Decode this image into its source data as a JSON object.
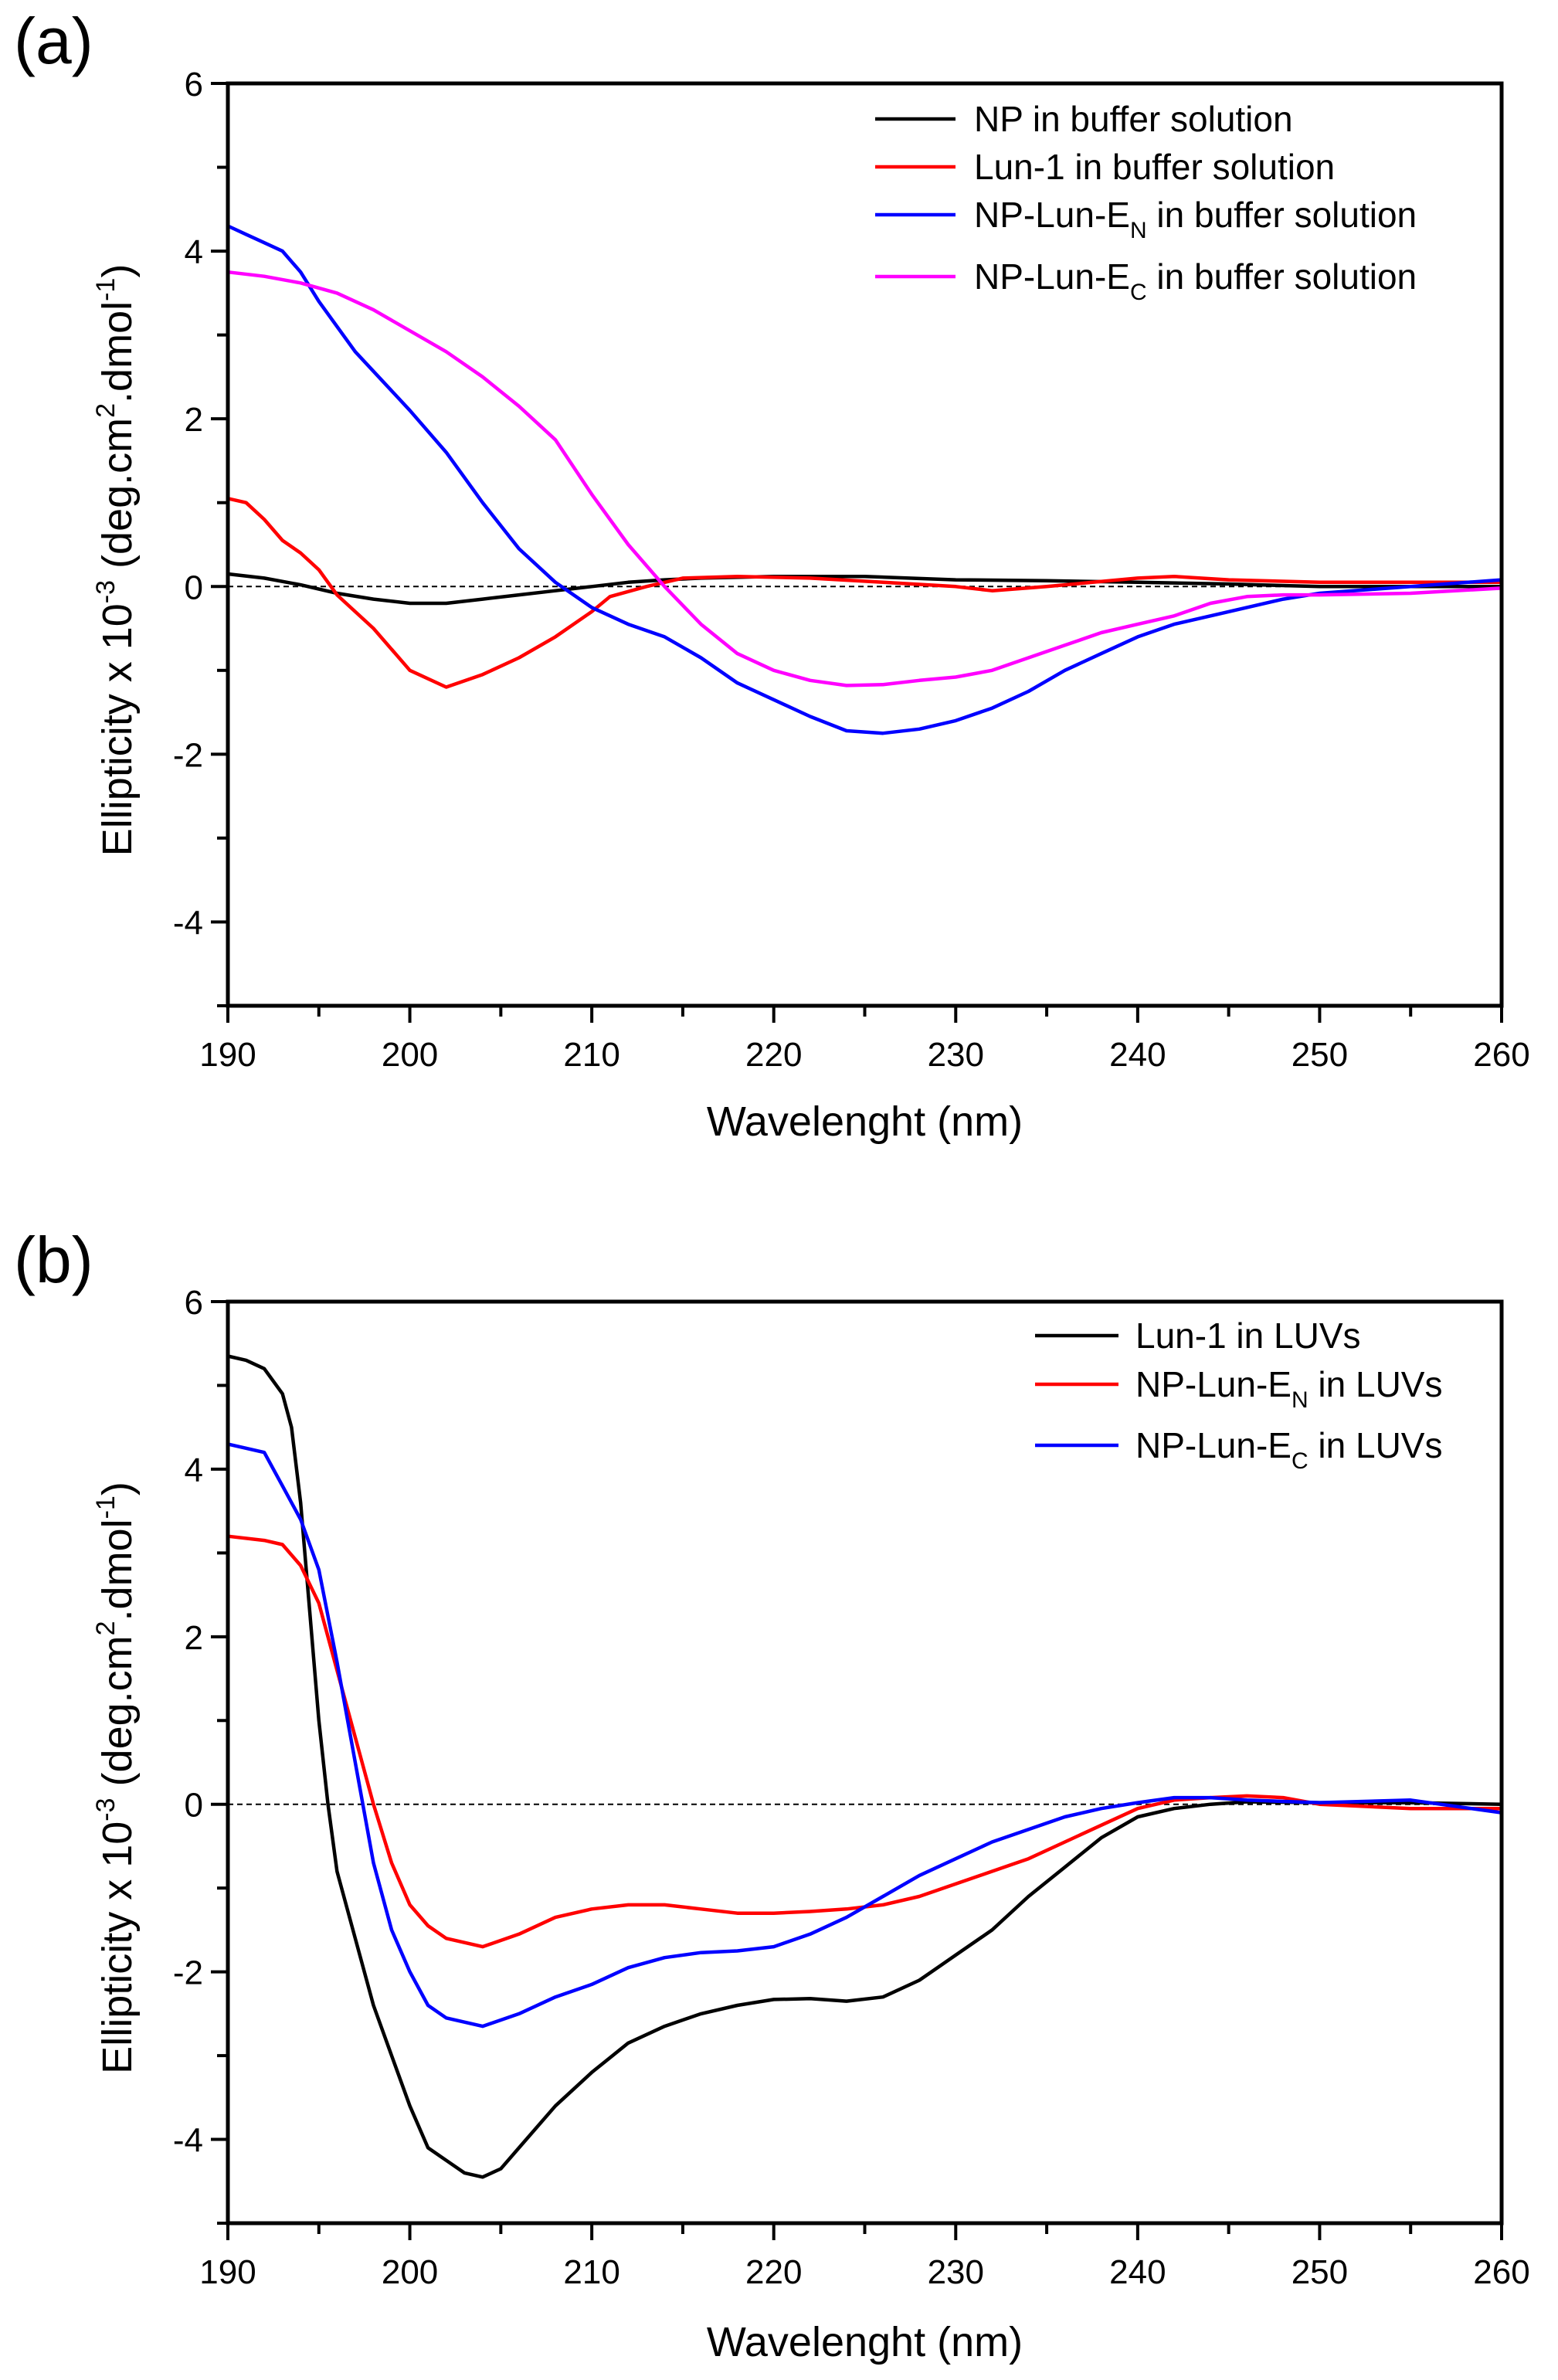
{
  "chart_data": [
    {
      "type": "line",
      "panel_label": "(a)",
      "xlabel": "Wavelenght (nm)",
      "ylabel_parts": [
        {
          "t": "Ellipticity x 10",
          "sup": false
        },
        {
          "t": "-3",
          "sup": true
        },
        {
          "t": " (deg.cm",
          "sup": false
        },
        {
          "t": "2",
          "sup": true
        },
        {
          "t": ".dmol",
          "sup": false
        },
        {
          "t": "-1",
          "sup": true
        },
        {
          "t": ")",
          "sup": false
        }
      ],
      "xlim": [
        190,
        260
      ],
      "ylim": [
        -5,
        6
      ],
      "xticks": [
        190,
        200,
        210,
        220,
        230,
        240,
        250,
        260
      ],
      "yticks": [
        -4,
        -2,
        0,
        2,
        4,
        6
      ],
      "zero_line": "dashed",
      "legend_position": "top-right",
      "series": [
        {
          "name": "NP in buffer solution",
          "label": "NP in buffer solution",
          "sub": "",
          "suffix": "",
          "color": "#000000",
          "x": [
            190,
            192,
            194,
            196,
            198,
            200,
            202,
            204,
            206,
            208,
            210,
            212,
            214,
            216,
            220,
            225,
            230,
            235,
            240,
            245,
            250,
            255,
            260
          ],
          "y": [
            0.15,
            0.1,
            0.02,
            -0.08,
            -0.15,
            -0.2,
            -0.2,
            -0.15,
            -0.1,
            -0.05,
            0,
            0.05,
            0.08,
            0.1,
            0.12,
            0.12,
            0.08,
            0.07,
            0.05,
            0.03,
            0,
            0,
            0
          ]
        },
        {
          "name": "Lun-1 in buffer solution",
          "label": "Lun-1 in buffer solution",
          "sub": "",
          "suffix": "",
          "color": "#ff0000",
          "x": [
            190,
            191,
            192,
            193,
            194,
            195,
            196,
            198,
            200,
            202,
            204,
            206,
            208,
            210,
            211,
            213,
            215,
            218,
            222,
            226,
            230,
            232,
            235,
            240,
            242,
            245,
            250,
            255,
            260
          ],
          "y": [
            1.05,
            1.0,
            0.8,
            0.55,
            0.4,
            0.2,
            -0.1,
            -0.5,
            -1.0,
            -1.2,
            -1.05,
            -0.85,
            -0.6,
            -0.3,
            -0.12,
            0,
            0.1,
            0.12,
            0.1,
            0.05,
            0,
            -0.05,
            0,
            0.1,
            0.12,
            0.08,
            0.05,
            0.05,
            0.05
          ]
        },
        {
          "name": "NP-Lun-EN in buffer solution",
          "label": "NP-Lun-E",
          "sub": "N",
          "suffix": " in buffer solution",
          "color": "#0000ff",
          "x": [
            190,
            191,
            192,
            193,
            194,
            195,
            197,
            200,
            202,
            204,
            206,
            208,
            210,
            212,
            214,
            216,
            218,
            220,
            222,
            224,
            226,
            228,
            230,
            232,
            234,
            236,
            238,
            240,
            242,
            244,
            246,
            248,
            250,
            255,
            260
          ],
          "y": [
            4.3,
            4.2,
            4.1,
            4.0,
            3.75,
            3.4,
            2.8,
            2.1,
            1.6,
            1.0,
            0.45,
            0.05,
            -0.25,
            -0.45,
            -0.6,
            -0.85,
            -1.15,
            -1.35,
            -1.55,
            -1.72,
            -1.75,
            -1.7,
            -1.6,
            -1.45,
            -1.25,
            -1.0,
            -0.8,
            -0.6,
            -0.45,
            -0.35,
            -0.25,
            -0.15,
            -0.08,
            0,
            0.08
          ]
        },
        {
          "name": "NP-Lun-EC in buffer solution",
          "label": "NP-Lun-E",
          "sub": "C",
          "suffix": " in buffer solution",
          "color": "#ff00ff",
          "x": [
            190,
            192,
            194,
            196,
            198,
            200,
            202,
            204,
            206,
            208,
            210,
            212,
            214,
            216,
            218,
            220,
            222,
            224,
            226,
            228,
            230,
            232,
            234,
            236,
            238,
            240,
            242,
            244,
            246,
            248,
            250,
            255,
            260
          ],
          "y": [
            3.75,
            3.7,
            3.62,
            3.5,
            3.3,
            3.05,
            2.8,
            2.5,
            2.15,
            1.75,
            1.1,
            0.5,
            0,
            -0.45,
            -0.8,
            -1.0,
            -1.12,
            -1.18,
            -1.17,
            -1.12,
            -1.08,
            -1.0,
            -0.85,
            -0.7,
            -0.55,
            -0.45,
            -0.35,
            -0.2,
            -0.12,
            -0.1,
            -0.1,
            -0.08,
            -0.02
          ]
        }
      ]
    },
    {
      "type": "line",
      "panel_label": "(b)",
      "xlabel": "Wavelenght (nm)",
      "ylabel_parts": [
        {
          "t": "Ellipticity x 10",
          "sup": false
        },
        {
          "t": "-3",
          "sup": true
        },
        {
          "t": " (deg.cm",
          "sup": false
        },
        {
          "t": "2",
          "sup": true
        },
        {
          "t": ".dmol",
          "sup": false
        },
        {
          "t": "-1",
          "sup": true
        },
        {
          "t": ")",
          "sup": false
        }
      ],
      "xlim": [
        190,
        260
      ],
      "ylim": [
        -5,
        6
      ],
      "xticks": [
        190,
        200,
        210,
        220,
        230,
        240,
        250,
        260
      ],
      "yticks": [
        -4,
        -2,
        0,
        2,
        4,
        6
      ],
      "zero_line": "dashed",
      "legend_position": "top-right",
      "series": [
        {
          "name": "Lun-1 in LUVs",
          "label": "Lun-1 in LUVs",
          "sub": "",
          "suffix": "",
          "color": "#000000",
          "x": [
            190,
            191,
            192,
            193,
            193.5,
            194,
            194.5,
            195,
            195.5,
            196,
            197,
            198,
            199,
            200,
            201,
            202,
            203,
            204,
            205,
            206,
            208,
            210,
            212,
            214,
            216,
            218,
            220,
            222,
            224,
            226,
            228,
            230,
            232,
            234,
            236,
            238,
            240,
            242,
            244,
            246,
            250,
            255,
            260
          ],
          "y": [
            5.35,
            5.3,
            5.2,
            4.9,
            4.5,
            3.6,
            2.3,
            1.0,
            0,
            -0.8,
            -1.6,
            -2.4,
            -3.0,
            -3.6,
            -4.1,
            -4.25,
            -4.4,
            -4.45,
            -4.35,
            -4.1,
            -3.6,
            -3.2,
            -2.85,
            -2.65,
            -2.5,
            -2.4,
            -2.33,
            -2.32,
            -2.35,
            -2.3,
            -2.1,
            -1.8,
            -1.5,
            -1.1,
            -0.75,
            -0.4,
            -0.15,
            -0.05,
            0,
            0.03,
            0.02,
            0.02,
            0
          ]
        },
        {
          "name": "NP-Lun-EN in LUVs",
          "label": "NP-Lun-E",
          "sub": "N",
          "suffix": " in LUVs",
          "color": "#ff0000",
          "x": [
            190,
            192,
            193,
            194,
            195,
            196,
            197,
            198,
            199,
            200,
            201,
            202,
            204,
            206,
            208,
            210,
            212,
            214,
            216,
            218,
            220,
            222,
            224,
            226,
            228,
            230,
            232,
            234,
            236,
            238,
            240,
            242,
            244,
            246,
            248,
            250,
            255,
            260
          ],
          "y": [
            3.2,
            3.15,
            3.1,
            2.85,
            2.4,
            1.6,
            0.8,
            0,
            -0.7,
            -1.2,
            -1.45,
            -1.6,
            -1.7,
            -1.55,
            -1.35,
            -1.25,
            -1.2,
            -1.2,
            -1.25,
            -1.3,
            -1.3,
            -1.28,
            -1.25,
            -1.2,
            -1.1,
            -0.95,
            -0.8,
            -0.65,
            -0.45,
            -0.25,
            -0.05,
            0.05,
            0.08,
            0.1,
            0.08,
            0,
            -0.05,
            -0.05
          ]
        },
        {
          "name": "NP-Lun-EC in LUVs",
          "label": "NP-Lun-E",
          "sub": "C",
          "suffix": " in LUVs",
          "color": "#0000ff",
          "x": [
            190,
            192,
            193,
            194,
            195,
            196,
            197,
            198,
            199,
            200,
            201,
            202,
            204,
            206,
            208,
            210,
            212,
            214,
            216,
            218,
            220,
            222,
            224,
            226,
            228,
            230,
            232,
            234,
            236,
            238,
            240,
            242,
            244,
            246,
            250,
            255,
            260
          ],
          "y": [
            4.3,
            4.2,
            3.8,
            3.4,
            2.8,
            1.7,
            0.5,
            -0.7,
            -1.5,
            -2.0,
            -2.4,
            -2.55,
            -2.65,
            -2.5,
            -2.3,
            -2.15,
            -1.95,
            -1.83,
            -1.77,
            -1.75,
            -1.7,
            -1.55,
            -1.35,
            -1.1,
            -0.85,
            -0.65,
            -0.45,
            -0.3,
            -0.15,
            -0.05,
            0.02,
            0.08,
            0.08,
            0.05,
            0.02,
            0.05,
            -0.1
          ]
        }
      ]
    }
  ]
}
